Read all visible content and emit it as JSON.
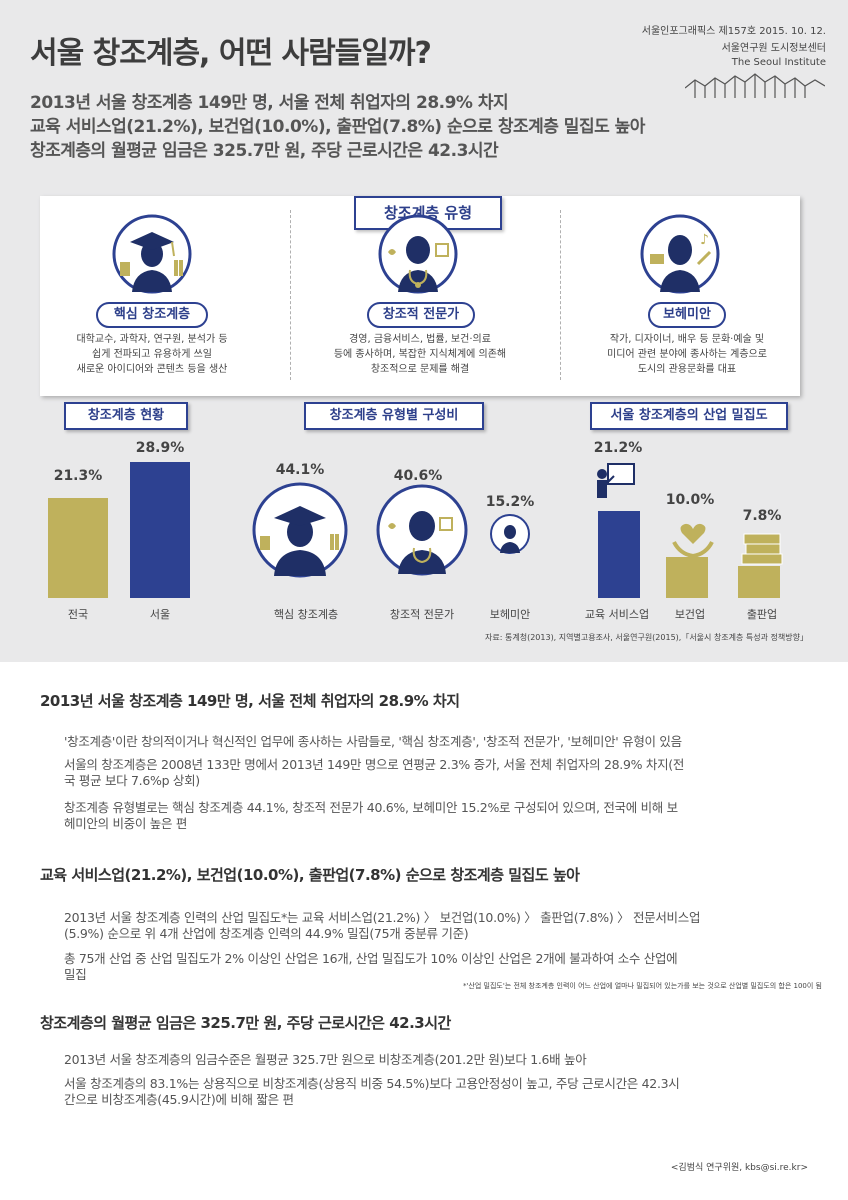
{
  "header": {
    "title": "서울 창조계층, 어떤 사람들일까?",
    "meta_issue": "서울인포그래픽스 제157호  2015. 10. 12.",
    "meta_org_kr": "서울연구원 도시정보센터",
    "meta_org_en": "The Seoul Institute"
  },
  "summary": [
    "2013년 서울 창조계층 149만 명, 서울 전체 취업자의 28.9% 차지",
    "교육 서비스업(21.2%), 보건업(10.0%), 출판업(7.8%) 순으로 창조계층 밀집도 높아",
    "창조계층의 월평균 임금은 325.7만 원, 주당 근로시간은 42.3시간"
  ],
  "types": {
    "title": "창조계층 유형",
    "items": [
      {
        "label": "핵심 창조계층",
        "desc": [
          "대학교수, 과학자, 연구원, 분석가 등",
          "쉽게 전파되고 유용하게 쓰일",
          "새로운 아이디어와 콘텐츠 등을 생산"
        ]
      },
      {
        "label": "창조적 전문가",
        "desc": [
          "경영, 금융서비스, 법률, 보건·의료",
          "등에 종사하며, 복잡한 지식체계에 의존해",
          "창조적으로 문제를 해결"
        ]
      },
      {
        "label": "보헤미안",
        "desc": [
          "작가, 디자이너, 배우 등 문화·예술 및",
          "미디어 관련 분야에 종사하는 계층으로",
          "도시의 관용문화를 대표"
        ]
      }
    ]
  },
  "chart_data": [
    {
      "type": "bar",
      "title": "창조계층 현황",
      "categories": [
        "전국",
        "서울"
      ],
      "values": [
        21.3,
        28.9
      ],
      "value_labels": [
        "21.3%",
        "28.9%"
      ],
      "colors": [
        "#bfb15c",
        "#2d4191"
      ]
    },
    {
      "type": "bubble",
      "title": "창조계층 유형별 구성비",
      "categories": [
        "핵심 창조계층",
        "창조적 전문가",
        "보헤미안"
      ],
      "values": [
        44.1,
        40.6,
        15.2
      ],
      "value_labels": [
        "44.1%",
        "40.6%",
        "15.2%"
      ]
    },
    {
      "type": "bar",
      "title": "서울 창조계층의 산업 밀집도",
      "categories": [
        "교육 서비스업",
        "보건업",
        "출판업"
      ],
      "values": [
        21.2,
        10.0,
        7.8
      ],
      "value_labels": [
        "21.2%",
        "10.0%",
        "7.8%"
      ],
      "colors": [
        "#2d4191",
        "#bfb15c",
        "#bfb15c"
      ]
    }
  ],
  "source": "자료: 통계청(2013), 지역별고용조사, 서울연구원(2015),「서울시 창조계층 특성과 정책방향」",
  "sections": [
    {
      "heading": "2013년 서울 창조계층 149만 명, 서울 전체 취업자의 28.9% 차지",
      "paras": [
        [
          "'창조계층'이란 창의적이거나 혁신적인 업무에 종사하는 사람들로, '핵심 창조계층', '창조적 전문가', '보헤미안' 유형이 있음"
        ],
        [
          "서울의 창조계층은 2008년 133만 명에서 2013년 149만 명으로 연평균 2.3% 증가, 서울 전체 취업자의 28.9% 차지(전",
          "국 평균 보다 7.6%p 상회)"
        ],
        [
          "창조계층 유형별로는 핵심 창조계층 44.1%, 창조적 전문가 40.6%, 보헤미안 15.2%로 구성되어 있으며, 전국에 비해 보",
          "헤미안의 비중이 높은 편"
        ]
      ]
    },
    {
      "heading": "교육 서비스업(21.2%), 보건업(10.0%), 출판업(7.8%) 순으로 창조계층 밀집도 높아",
      "paras": [
        [
          "2013년 서울 창조계층 인력의 산업 밀집도*는 교육 서비스업(21.2%) 〉 보건업(10.0%) 〉 출판업(7.8%) 〉 전문서비스업",
          "(5.9%) 순으로 위 4개 산업에 창조계층 인력의 44.9% 밀집(75개 중분류 기준)"
        ],
        [
          "총 75개 산업 중 산업 밀집도가 2% 이상인 산업은 16개, 산업 밀집도가 10% 이상인 산업은 2개에 불과하여 소수 산업에",
          "밀집"
        ]
      ],
      "note": "*'산업 밀집도'는 전체 창조계층 인력이 어느 산업에 얼마나 밀집되어 있는가를 보는 것으로 산업별 밀집도의 합은 100이 됨"
    },
    {
      "heading": "창조계층의 월평균 임금은 325.7만 원, 주당 근로시간은 42.3시간",
      "paras": [
        [
          "2013년 서울 창조계층의 임금수준은 월평균 325.7만 원으로 비창조계층(201.2만 원)보다 1.6배 높아"
        ],
        [
          "서울 창조계층의 83.1%는 상용직으로 비창조계층(상용직 비중 54.5%)보다 고용안정성이 높고, 주당 근로시간은 42.3시",
          "간으로 비창조계층(45.9시간)에 비해 짧은 편"
        ]
      ]
    }
  ],
  "author": "<김범식 연구위원,  kbs@si.re.kr>"
}
